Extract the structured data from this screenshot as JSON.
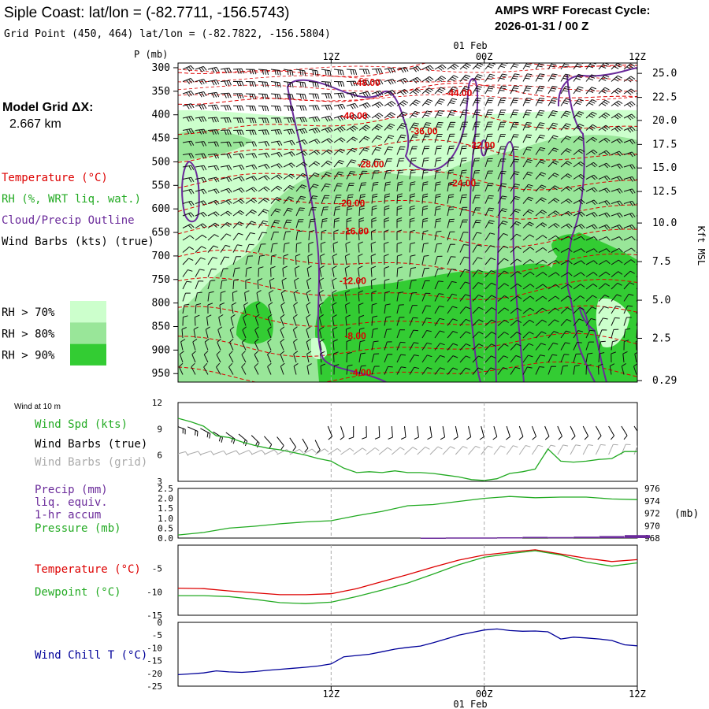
{
  "header": {
    "title": "Siple Coast:  lat/lon = (-82.7711, -156.5743)",
    "subtitle": "Grid Point (450, 464) lat/lon = (-82.7822, -156.5804)",
    "forecast_label": "AMPS WRF Forecast Cycle:",
    "forecast_cycle": "2026-01-31 / 00  Z"
  },
  "time_axis": {
    "ticks": [
      {
        "hour": 12,
        "label": "12Z"
      },
      {
        "hour": 24,
        "label": "00Z"
      },
      {
        "hour": 36,
        "label": "12Z"
      }
    ],
    "date_label": "01 Feb",
    "date_hour": 24,
    "range": [
      0,
      36
    ]
  },
  "legend": {
    "model_grid_label": "Model Grid ΔX:",
    "model_grid_value": "2.667 km",
    "temperature": "Temperature (°C)",
    "rh": "RH (%, WRT liq. wat.)",
    "cloud": "Cloud/Precip Outline",
    "wind_barbs": "Wind Barbs (kts) (true)",
    "rh_bins": [
      {
        "label": "RH > 70%",
        "color": "#ccffcc"
      },
      {
        "label": "RH > 80%",
        "color": "#99e699"
      },
      {
        "label": "RH > 90%",
        "color": "#33cc33"
      }
    ],
    "colors": {
      "temperature": "#dd0000",
      "rh": "#22aa22",
      "cloud": "#6a2a9a"
    }
  },
  "chart_data": [
    {
      "type": "heatmap",
      "name": "cross-section",
      "ylabel": "P (mb)",
      "ylabel_right": "Kft MSL",
      "pressure_ticks": [
        300,
        350,
        400,
        450,
        500,
        550,
        600,
        650,
        700,
        750,
        800,
        850,
        900,
        950
      ],
      "height_ticks": [
        {
          "p": 312,
          "label": "25.0"
        },
        {
          "p": 363,
          "label": "22.5"
        },
        {
          "p": 412,
          "label": "20.0"
        },
        {
          "p": 463,
          "label": "17.5"
        },
        {
          "p": 513,
          "label": "15.0"
        },
        {
          "p": 563,
          "label": "12.5"
        },
        {
          "p": 630,
          "label": "10.0"
        },
        {
          "p": 712,
          "label": "7.5"
        },
        {
          "p": 794,
          "label": "5.0"
        },
        {
          "p": 875,
          "label": "2.5"
        },
        {
          "p": 965,
          "label": "0.29"
        }
      ],
      "ylim": [
        290,
        968
      ],
      "temperature_labels": [
        {
          "t": 14.8,
          "p": 332,
          "label": "-48.00"
        },
        {
          "t": 22.0,
          "p": 354,
          "label": "-44.00"
        },
        {
          "t": 13.8,
          "p": 402,
          "label": "-40.00"
        },
        {
          "t": 19.3,
          "p": 435,
          "label": "-36.00"
        },
        {
          "t": 23.8,
          "p": 465,
          "label": "-32.00"
        },
        {
          "t": 15.1,
          "p": 505,
          "label": "-28.00"
        },
        {
          "t": 22.3,
          "p": 545,
          "label": "-24.00"
        },
        {
          "t": 13.6,
          "p": 588,
          "label": "-20.00"
        },
        {
          "t": 13.9,
          "p": 647,
          "label": "-16.00"
        },
        {
          "t": 13.7,
          "p": 753,
          "label": "-12.00"
        },
        {
          "t": 13.9,
          "p": 870,
          "label": "-8.00"
        },
        {
          "t": 14.3,
          "p": 948,
          "label": "-4.00"
        }
      ],
      "temperature_contour_levels": [
        -48,
        -44,
        -40,
        -36,
        -32,
        -28,
        -24,
        -20,
        -16,
        -12,
        -8,
        -4
      ]
    },
    {
      "type": "line",
      "name": "wind",
      "title": "Wind at 10 m",
      "legend": [
        "Wind Spd (kts)",
        "Wind Barbs (true)",
        "Wind Barbs (grid)"
      ],
      "legend_colors": [
        "#22aa22",
        "#000000",
        "#aaaaaa"
      ],
      "ylim": [
        3,
        12
      ],
      "yticks": [
        3,
        6,
        9,
        12
      ],
      "x": [
        0,
        1,
        2,
        3,
        4,
        5,
        6,
        7,
        8,
        9,
        10,
        11,
        12,
        13,
        14,
        15,
        16,
        17,
        18,
        19,
        20,
        21,
        22,
        23,
        24,
        25,
        26,
        27,
        28,
        29,
        30,
        31,
        32,
        33,
        34,
        35,
        36
      ],
      "series": [
        {
          "name": "Wind Spd (kts)",
          "values": [
            10.2,
            9.8,
            9.3,
            8.2,
            8.0,
            7.5,
            7.1,
            6.8,
            6.6,
            6.3,
            6.0,
            5.6,
            5.3,
            4.5,
            4.0,
            4.1,
            4.0,
            4.2,
            4.0,
            4.0,
            3.9,
            3.7,
            3.5,
            3.2,
            3.1,
            3.3,
            3.9,
            4.1,
            4.4,
            6.7,
            5.3,
            5.2,
            5.3,
            5.5,
            5.6,
            6.4,
            6.4
          ]
        }
      ]
    },
    {
      "type": "line",
      "name": "precip-pressure",
      "legend": [
        "Precip (mm)",
        "liq. equiv.",
        "1-hr accum",
        "Pressure (mb)"
      ],
      "legend_colors": [
        "#6a2a9a",
        "#6a2a9a",
        "#6a2a9a",
        "#22aa22"
      ],
      "unit_right": "(mb)",
      "ylim_left": [
        0,
        2.5
      ],
      "yticks_left": [
        "0.0",
        "0.5",
        "1.0",
        "1.5",
        "2.0",
        "2.5"
      ],
      "ylim_right": [
        968,
        976
      ],
      "yticks_right": [
        "968",
        "970",
        "972",
        "974",
        "976"
      ],
      "x": [
        0,
        2,
        4,
        6,
        8,
        10,
        12,
        14,
        16,
        18,
        20,
        22,
        24,
        26,
        28,
        30,
        32,
        34,
        36
      ],
      "series": [
        {
          "name": "Pressure (mb)",
          "axis": "right",
          "values": [
            968.5,
            968.9,
            969.6,
            969.9,
            970.3,
            970.6,
            970.8,
            971.6,
            972.3,
            973.2,
            973.4,
            973.9,
            974.4,
            974.7,
            974.5,
            974.6,
            974.6,
            974.3,
            974.2
          ]
        },
        {
          "name": "Precip (mm)",
          "axis": "left",
          "values": [
            0,
            0,
            0,
            0,
            0,
            0,
            0,
            0,
            0,
            0,
            0.02,
            0.03,
            0.03,
            0.04,
            0.06,
            0.05,
            0.07,
            0.1,
            0.15
          ]
        }
      ]
    },
    {
      "type": "line",
      "name": "temperature-dewpoint",
      "legend": [
        "Temperature (°C)",
        "Dewpoint (°C)"
      ],
      "legend_colors": [
        "#dd0000",
        "#22aa22"
      ],
      "ylim": [
        -15,
        0
      ],
      "yticks": [
        -15,
        -10,
        -5
      ],
      "x": [
        0,
        2,
        4,
        6,
        8,
        10,
        12,
        14,
        16,
        18,
        20,
        22,
        24,
        26,
        28,
        30,
        32,
        34,
        36
      ],
      "series": [
        {
          "name": "Temperature (°C)",
          "values": [
            -9.2,
            -9.3,
            -9.8,
            -10.2,
            -10.6,
            -10.6,
            -10.4,
            -9.3,
            -7.8,
            -6.3,
            -4.7,
            -3.2,
            -2.1,
            -1.5,
            -1.0,
            -1.9,
            -2.8,
            -3.5,
            -3.1
          ]
        },
        {
          "name": "Dewpoint (°C)",
          "values": [
            -10.8,
            -10.8,
            -11.0,
            -11.6,
            -12.3,
            -12.5,
            -12.2,
            -11.0,
            -9.6,
            -8.1,
            -6.2,
            -4.2,
            -2.6,
            -1.8,
            -1.2,
            -2.1,
            -3.6,
            -4.5,
            -3.8
          ]
        }
      ]
    },
    {
      "type": "line",
      "name": "wind-chill",
      "legend": [
        "Wind Chill T (°C)"
      ],
      "legend_colors": [
        "#000099"
      ],
      "ylim": [
        -25,
        0
      ],
      "yticks": [
        -25,
        -20,
        -15,
        -10,
        -5,
        0
      ],
      "x": [
        0,
        1,
        2,
        3,
        4,
        5,
        6,
        7,
        8,
        9,
        10,
        11,
        12,
        13,
        14,
        15,
        16,
        17,
        18,
        19,
        20,
        21,
        22,
        23,
        24,
        25,
        26,
        27,
        28,
        29,
        30,
        31,
        32,
        33,
        34,
        35,
        36
      ],
      "series": [
        {
          "name": "Wind Chill T (°C)",
          "values": [
            -20.5,
            -20.2,
            -19.8,
            -19.0,
            -19.4,
            -19.6,
            -19.3,
            -18.8,
            -18.4,
            -18.0,
            -17.6,
            -17.1,
            -16.3,
            -13.5,
            -13.0,
            -12.5,
            -11.5,
            -10.5,
            -9.8,
            -9.3,
            -8.0,
            -6.5,
            -5.0,
            -4.0,
            -3.0,
            -2.6,
            -3.2,
            -3.5,
            -3.4,
            -3.7,
            -6.5,
            -5.8,
            -6.1,
            -6.5,
            -7.1,
            -8.8,
            -9.2
          ]
        }
      ]
    }
  ]
}
